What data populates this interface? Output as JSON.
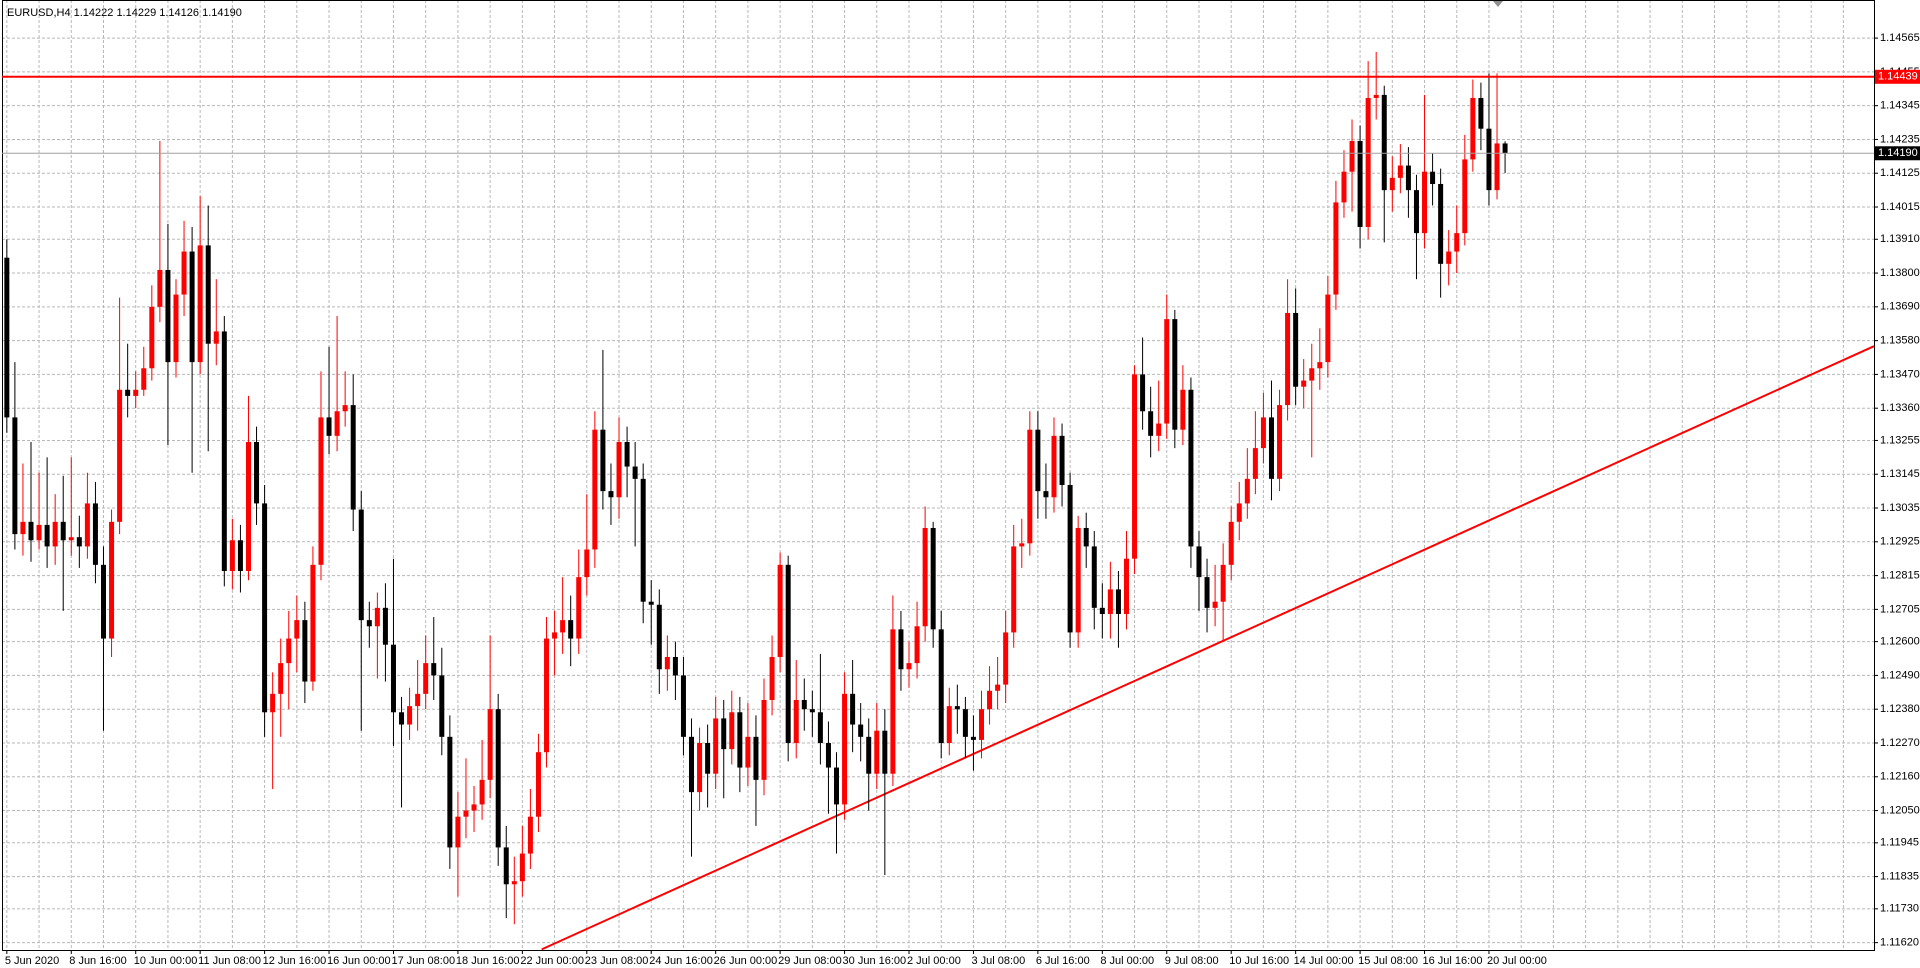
{
  "chart_data": {
    "type": "candlestick",
    "title": "EURUSD,H4  1.14222 1.14229 1.14126 1.14190",
    "categories": [
      "5 Jun 2020",
      null,
      null,
      null,
      null,
      null,
      null,
      null,
      "8 Jun 16:00",
      null,
      null,
      null,
      null,
      null,
      null,
      null,
      "10 Jun 00:00",
      null,
      null,
      null,
      null,
      null,
      null,
      null,
      "11 Jun 08:00",
      null,
      null,
      null,
      null,
      null,
      null,
      null,
      "12 Jun 16:00",
      null,
      null,
      null,
      null,
      null,
      null,
      null,
      "16 Jun 00:00",
      null,
      null,
      null,
      null,
      null,
      null,
      null,
      "17 Jun 08:00",
      null,
      null,
      null,
      null,
      null,
      null,
      null,
      "18 Jun 16:00",
      null,
      null,
      null,
      null,
      null,
      null,
      null,
      "22 Jun 00:00",
      null,
      null,
      null,
      null,
      null,
      null,
      null,
      "23 Jun 08:00",
      null,
      null,
      null,
      null,
      null,
      null,
      null,
      "24 Jun 16:00",
      null,
      null,
      null,
      null,
      null,
      null,
      null,
      "26 Jun 00:00",
      null,
      null,
      null,
      null,
      null,
      null,
      null,
      "29 Jun 08:00",
      null,
      null,
      null,
      null,
      null,
      null,
      null,
      "30 Jun 16:00",
      null,
      null,
      null,
      null,
      null,
      null,
      null,
      "2 Jul 00:00",
      null,
      null,
      null,
      null,
      null,
      null,
      null,
      "3 Jul 08:00",
      null,
      null,
      null,
      null,
      null,
      null,
      null,
      "6 Jul 16:00",
      null,
      null,
      null,
      null,
      null,
      null,
      null,
      "8 Jul 00:00",
      null,
      null,
      null,
      null,
      null,
      null,
      null,
      "9 Jul 08:00",
      null,
      null,
      null,
      null,
      null,
      null,
      null,
      "10 Jul 16:00",
      null,
      null,
      null,
      null,
      null,
      null,
      null,
      "14 Jul 00:00",
      null,
      null,
      null,
      null,
      null,
      null,
      null,
      "15 Jul 08:00",
      null,
      null,
      null,
      null,
      null,
      null,
      null,
      "16 Jul 16:00",
      null,
      null,
      null,
      null,
      null,
      null,
      null,
      "20 Jul 00:00",
      null,
      null
    ],
    "open": [
      1.1385,
      1.1333,
      1.1295,
      1.1299,
      1.1293,
      1.1298,
      1.1291,
      1.1299,
      1.1293,
      1.1294,
      1.1291,
      1.1305,
      1.1285,
      1.1261,
      1.1299,
      1.1342,
      1.134,
      1.1342,
      1.1349,
      1.1369,
      1.1381,
      1.1351,
      1.1373,
      1.1387,
      1.1351,
      1.1389,
      1.1357,
      1.1361,
      1.1283,
      1.1293,
      1.1283,
      1.1325,
      1.1305,
      1.1237,
      1.1243,
      1.1253,
      1.1261,
      1.1267,
      1.1247,
      1.1285,
      1.1333,
      1.1327,
      1.1335,
      1.1337,
      1.1303,
      1.1267,
      1.1265,
      1.1271,
      1.1259,
      1.1237,
      1.1233,
      1.1239,
      1.1243,
      1.1253,
      1.1249,
      1.1229,
      1.1193,
      1.1203,
      1.1205,
      1.1207,
      1.1215,
      1.1238,
      1.1193,
      1.1181,
      1.1182,
      1.1191,
      1.1203,
      1.1224,
      1.1261,
      1.1263,
      1.1267,
      1.1261,
      1.1281,
      1.129,
      1.1329,
      1.1309,
      1.1307,
      1.1325,
      1.1317,
      1.1313,
      1.1273,
      1.1272,
      1.1251,
      1.1255,
      1.1249,
      1.1229,
      1.1211,
      1.1227,
      1.1217,
      1.1235,
      1.1225,
      1.1237,
      1.1219,
      1.1229,
      1.1215,
      1.1241,
      1.1255,
      1.1285,
      1.1227,
      1.1241,
      1.1238,
      1.1237,
      1.1227,
      1.1219,
      1.1207,
      1.1243,
      1.1233,
      1.1229,
      1.1217,
      1.1231,
      1.1217,
      1.1264,
      1.1251,
      1.1253,
      1.1265,
      1.1297,
      1.1264,
      1.1227,
      1.1239,
      1.1238,
      1.1229,
      1.1228,
      1.1238,
      1.1244,
      1.1246,
      1.1263,
      1.1291,
      1.1292,
      1.1329,
      1.1309,
      1.1307,
      1.1327,
      1.1311,
      1.1263,
      1.1297,
      1.1291,
      1.1271,
      1.1269,
      1.1277,
      1.1269,
      1.1287,
      1.1347,
      1.1335,
      1.1327,
      1.1331,
      1.1365,
      1.1329,
      1.1342,
      1.1291,
      1.1281,
      1.1271,
      1.1273,
      1.1285,
      1.1299,
      1.1305,
      1.1313,
      1.1323,
      1.1333,
      1.1313,
      1.1337,
      1.1367,
      1.1343,
      1.1345,
      1.1349,
      1.1351,
      1.1373,
      1.1403,
      1.1413,
      1.1423,
      1.1395,
      1.1437,
      1.1438,
      1.1407,
      1.1411,
      1.1415,
      1.1407,
      1.1393,
      1.1413,
      1.1409,
      1.1383,
      1.1387,
      1.1393,
      1.1417,
      1.1437,
      1.1427,
      1.1407,
      1.14222
    ],
    "high": [
      1.1391,
      1.1351,
      1.1318,
      1.1325,
      1.1315,
      1.132,
      1.1308,
      1.1314,
      1.132,
      1.1301,
      1.1315,
      1.1312,
      1.1291,
      1.1303,
      1.1372,
      1.1357,
      1.1348,
      1.1356,
      1.1376,
      1.1423,
      1.1396,
      1.1378,
      1.1397,
      1.1395,
      1.1405,
      1.1402,
      1.1378,
      1.1366,
      1.13,
      1.1298,
      1.134,
      1.133,
      1.1311,
      1.125,
      1.1261,
      1.127,
      1.1275,
      1.1273,
      1.1291,
      1.1348,
      1.1356,
      1.1366,
      1.1348,
      1.1347,
      1.1309,
      1.1273,
      1.1276,
      1.1279,
      1.1287,
      1.1242,
      1.1245,
      1.1254,
      1.1262,
      1.1268,
      1.1258,
      1.1236,
      1.1211,
      1.1222,
      1.1213,
      1.1228,
      1.1262,
      1.1243,
      1.12,
      1.119,
      1.12,
      1.1212,
      1.123,
      1.1268,
      1.127,
      1.1281,
      1.1275,
      1.129,
      1.1308,
      1.1335,
      1.1355,
      1.1318,
      1.1333,
      1.133,
      1.1325,
      1.1318,
      1.128,
      1.1277,
      1.1262,
      1.126,
      1.1255,
      1.1235,
      1.1232,
      1.1233,
      1.1242,
      1.1241,
      1.1244,
      1.1242,
      1.124,
      1.1236,
      1.1248,
      1.1262,
      1.1289,
      1.1288,
      1.1254,
      1.1248,
      1.1244,
      1.1256,
      1.1234,
      1.1224,
      1.125,
      1.1254,
      1.124,
      1.1235,
      1.124,
      1.1238,
      1.1275,
      1.127,
      1.126,
      1.1273,
      1.1304,
      1.1299,
      1.127,
      1.1245,
      1.1246,
      1.1242,
      1.1236,
      1.1244,
      1.1252,
      1.1255,
      1.127,
      1.1298,
      1.13,
      1.1335,
      1.1335,
      1.1318,
      1.1333,
      1.1331,
      1.1315,
      1.1301,
      1.1302,
      1.1296,
      1.1279,
      1.1286,
      1.1283,
      1.1296,
      1.135,
      1.1359,
      1.1343,
      1.1345,
      1.1373,
      1.1368,
      1.135,
      1.1346,
      1.1296,
      1.1287,
      1.1285,
      1.1292,
      1.1304,
      1.1312,
      1.1323,
      1.1335,
      1.1341,
      1.1345,
      1.1342,
      1.1378,
      1.1375,
      1.1352,
      1.1357,
      1.1362,
      1.1379,
      1.141,
      1.142,
      1.143,
      1.1428,
      1.1449,
      1.1452,
      1.1441,
      1.1418,
      1.1422,
      1.1421,
      1.1412,
      1.1438,
      1.1419,
      1.1414,
      1.1394,
      1.1402,
      1.1425,
      1.1443,
      1.1442,
      1.1445,
      1.1445,
      1.14229
    ],
    "low": [
      1.1328,
      1.129,
      1.1288,
      1.1286,
      1.129,
      1.1284,
      1.1285,
      1.127,
      1.1288,
      1.1284,
      1.1287,
      1.1279,
      1.1231,
      1.1255,
      1.1295,
      1.1333,
      1.1336,
      1.134,
      1.1345,
      1.1364,
      1.1324,
      1.1346,
      1.1366,
      1.1315,
      1.1347,
      1.1322,
      1.135,
      1.1278,
      1.1277,
      1.1276,
      1.128,
      1.1298,
      1.1229,
      1.1212,
      1.1229,
      1.1238,
      1.125,
      1.124,
      1.1244,
      1.128,
      1.1321,
      1.1322,
      1.133,
      1.1296,
      1.1231,
      1.1258,
      1.1248,
      1.1247,
      1.1226,
      1.1206,
      1.1228,
      1.1231,
      1.1238,
      1.1241,
      1.1223,
      1.1186,
      1.1177,
      1.1196,
      1.1198,
      1.1202,
      1.1209,
      1.1187,
      1.117,
      1.1168,
      1.1177,
      1.1186,
      1.1198,
      1.1219,
      1.1249,
      1.1256,
      1.1252,
      1.1256,
      1.1275,
      1.1284,
      1.1303,
      1.1298,
      1.13,
      1.1307,
      1.1291,
      1.1266,
      1.1259,
      1.1243,
      1.1244,
      1.1241,
      1.1223,
      1.119,
      1.1205,
      1.1206,
      1.1212,
      1.1209,
      1.122,
      1.1211,
      1.1213,
      1.12,
      1.121,
      1.1236,
      1.125,
      1.1221,
      1.1222,
      1.1231,
      1.1229,
      1.122,
      1.1204,
      1.1191,
      1.1202,
      1.1224,
      1.1221,
      1.1205,
      1.1212,
      1.1184,
      1.1213,
      1.1244,
      1.1245,
      1.1248,
      1.126,
      1.1258,
      1.1222,
      1.1223,
      1.123,
      1.1222,
      1.1218,
      1.1222,
      1.1233,
      1.1238,
      1.124,
      1.1258,
      1.1284,
      1.1288,
      1.13,
      1.13,
      1.1302,
      1.1304,
      1.1258,
      1.1258,
      1.1284,
      1.1264,
      1.1261,
      1.1261,
      1.1258,
      1.1264,
      1.1282,
      1.1329,
      1.132,
      1.1322,
      1.1326,
      1.1323,
      1.1324,
      1.1284,
      1.127,
      1.1263,
      1.1265,
      1.126,
      1.128,
      1.1293,
      1.13,
      1.1308,
      1.1318,
      1.1306,
      1.1309,
      1.1332,
      1.1337,
      1.1336,
      1.132,
      1.1342,
      1.1346,
      1.1368,
      1.1398,
      1.14,
      1.1388,
      1.1391,
      1.143,
      1.139,
      1.14,
      1.1406,
      1.1398,
      1.1378,
      1.1388,
      1.1402,
      1.1372,
      1.1376,
      1.138,
      1.1389,
      1.1413,
      1.142,
      1.1402,
      1.1404,
      1.14126
    ],
    "close": [
      1.1333,
      1.1295,
      1.1299,
      1.1293,
      1.1298,
      1.1291,
      1.1299,
      1.1293,
      1.1294,
      1.1291,
      1.1305,
      1.1285,
      1.1261,
      1.1299,
      1.1342,
      1.134,
      1.1342,
      1.1349,
      1.1369,
      1.1381,
      1.1351,
      1.1373,
      1.1387,
      1.1351,
      1.1389,
      1.1357,
      1.1361,
      1.1283,
      1.1293,
      1.1283,
      1.1325,
      1.1305,
      1.1237,
      1.1243,
      1.1253,
      1.1261,
      1.1267,
      1.1247,
      1.1285,
      1.1333,
      1.1327,
      1.1335,
      1.1337,
      1.1303,
      1.1267,
      1.1265,
      1.1271,
      1.1259,
      1.1237,
      1.1233,
      1.1239,
      1.1243,
      1.1253,
      1.1249,
      1.1229,
      1.1193,
      1.1203,
      1.1205,
      1.1207,
      1.1215,
      1.1238,
      1.1193,
      1.1181,
      1.1182,
      1.1191,
      1.1203,
      1.1224,
      1.1261,
      1.1263,
      1.1267,
      1.1261,
      1.1281,
      1.129,
      1.1329,
      1.1309,
      1.1307,
      1.1325,
      1.1317,
      1.1313,
      1.1273,
      1.1272,
      1.1251,
      1.1255,
      1.1249,
      1.1229,
      1.1211,
      1.1227,
      1.1217,
      1.1235,
      1.1225,
      1.1237,
      1.1219,
      1.1229,
      1.1215,
      1.1241,
      1.1255,
      1.1285,
      1.1227,
      1.1241,
      1.1238,
      1.1237,
      1.1227,
      1.1219,
      1.1207,
      1.1243,
      1.1233,
      1.1229,
      1.1217,
      1.1231,
      1.1217,
      1.1264,
      1.1251,
      1.1253,
      1.1265,
      1.1297,
      1.1264,
      1.1227,
      1.1239,
      1.1238,
      1.1229,
      1.1228,
      1.1238,
      1.1244,
      1.1246,
      1.1263,
      1.1291,
      1.1292,
      1.1329,
      1.1309,
      1.1307,
      1.1327,
      1.1311,
      1.1263,
      1.1297,
      1.1291,
      1.1271,
      1.1269,
      1.1277,
      1.1269,
      1.1287,
      1.1347,
      1.1335,
      1.1327,
      1.1331,
      1.1365,
      1.1329,
      1.1342,
      1.1291,
      1.1281,
      1.1271,
      1.1273,
      1.1285,
      1.1299,
      1.1305,
      1.1313,
      1.1323,
      1.1333,
      1.1313,
      1.1337,
      1.1367,
      1.1343,
      1.1345,
      1.1349,
      1.1351,
      1.1373,
      1.1403,
      1.1413,
      1.1423,
      1.1395,
      1.1437,
      1.1438,
      1.1407,
      1.1411,
      1.1415,
      1.1407,
      1.1393,
      1.1413,
      1.1409,
      1.1383,
      1.1387,
      1.1393,
      1.1417,
      1.1437,
      1.1427,
      1.1407,
      1.14222,
      1.1419
    ],
    "up_color": "#ff0000",
    "down_color": "#000000",
    "xlim": [
      -0.6,
      231.8
    ],
    "ylim": [
      1.11596,
      1.14689
    ],
    "yticks": [
      1.14565,
      1.14455,
      1.14345,
      1.14235,
      1.14125,
      1.14015,
      {
        "value": 1.1391,
        "label": "1.13910"
      },
      {
        "value": 1.138,
        "label": "1.13800"
      },
      {
        "value": 1.1369,
        "label": "1.13690"
      },
      {
        "value": 1.1358,
        "label": "1.13580"
      },
      {
        "value": 1.1347,
        "label": "1.13470"
      },
      {
        "value": 1.1336,
        "label": "1.13360"
      },
      1.13255,
      1.13145,
      1.13035,
      1.12925,
      1.12815,
      1.12705,
      {
        "value": 1.126,
        "label": "1.12600"
      },
      {
        "value": 1.1249,
        "label": "1.12490"
      },
      {
        "value": 1.1238,
        "label": "1.12380"
      },
      {
        "value": 1.1227,
        "label": "1.12270"
      },
      {
        "value": 1.1216,
        "label": "1.12160"
      },
      {
        "value": 1.1205,
        "label": "1.12050"
      },
      1.11945,
      1.11835,
      {
        "value": 1.1173,
        "label": "1.11730"
      },
      {
        "value": 1.1162,
        "label": "1.11620"
      }
    ],
    "grid": true,
    "hlines": [
      {
        "value": 1.14439,
        "label": "1.14439",
        "color": "#ff0000"
      }
    ],
    "bid": {
      "value": 1.1419,
      "label": "1.14190",
      "color": "#a0a0a0"
    },
    "trendline": {
      "x": [
        66.4,
        231.8
      ],
      "values": [
        1.11598,
        1.13562
      ],
      "color": "#ff0000"
    }
  }
}
